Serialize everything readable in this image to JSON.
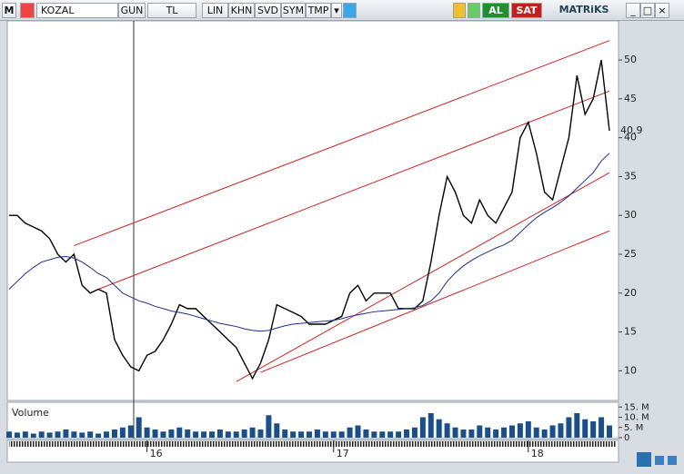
{
  "toolbar": {
    "menu": "M",
    "symbol": "KOZAL",
    "period": "GUN",
    "currency": "TL",
    "buttons": [
      "LIN",
      "KHN",
      "SVD",
      "SYM",
      "TMP"
    ],
    "buy": "AL",
    "sell": "SAT",
    "brand": "MATRiKS"
  },
  "chart_data": {
    "type": "line",
    "categories": [
      null,
      null,
      null,
      null,
      null,
      null,
      null,
      null,
      null,
      null,
      null,
      null,
      null,
      null,
      null,
      null,
      null,
      "16",
      null,
      null,
      null,
      null,
      null,
      null,
      null,
      null,
      null,
      null,
      null,
      null,
      null,
      null,
      null,
      null,
      null,
      null,
      null,
      null,
      null,
      null,
      "17",
      null,
      null,
      null,
      null,
      null,
      null,
      null,
      null,
      null,
      null,
      null,
      null,
      null,
      null,
      null,
      null,
      null,
      null,
      null,
      null,
      null,
      null,
      null,
      "18",
      null,
      null,
      null,
      null,
      null,
      null,
      null,
      null,
      null,
      null
    ],
    "series": [
      {
        "color": "#000000",
        "values": [
          30,
          30,
          29,
          28.5,
          28,
          27,
          25,
          24,
          25,
          21,
          20,
          20.5,
          20,
          14,
          12,
          10.5,
          10,
          12,
          12.5,
          14,
          16,
          18.5,
          18,
          18,
          17,
          16,
          15,
          14,
          13,
          11,
          9,
          11,
          14,
          18.5,
          18,
          17.5,
          17,
          16,
          16,
          16,
          16.5,
          17,
          20,
          21,
          19,
          20,
          20,
          20,
          18,
          18,
          18,
          19,
          24,
          30,
          35,
          33,
          30,
          29,
          32,
          30,
          29,
          31,
          33,
          40,
          42,
          38,
          33,
          32,
          36,
          40,
          48,
          43,
          45,
          50,
          40.9
        ]
      },
      {
        "color": "#1f2f8f",
        "values": [
          20.5,
          21.5,
          22.5,
          23.3,
          24,
          24.3,
          24.6,
          24.7,
          24.5,
          24,
          23.3,
          22.5,
          22,
          21,
          20,
          19.5,
          19,
          18.7,
          18.3,
          18,
          17.7,
          17.5,
          17.3,
          17,
          16.7,
          16.4,
          16.1,
          15.9,
          15.7,
          15.4,
          15.2,
          15.1,
          15.2,
          15.5,
          15.8,
          16,
          16.1,
          16.2,
          16.3,
          16.4,
          16.5,
          16.7,
          17,
          17.2,
          17.4,
          17.6,
          17.7,
          17.8,
          17.9,
          18,
          18.1,
          18.4,
          19,
          20,
          21.5,
          22.6,
          23.5,
          24.2,
          24.8,
          25.3,
          25.8,
          26.2,
          26.8,
          27.8,
          28.8,
          29.7,
          30.4,
          31,
          31.7,
          32.5,
          33.5,
          34.5,
          35.5,
          37,
          38
        ]
      }
    ],
    "ylim": [
      6.3,
      54.8
    ],
    "yticks": [
      10,
      15,
      20,
      25,
      30,
      35,
      40,
      45,
      50
    ],
    "trend_color": "#cc2222",
    "trend_lines": [
      {
        "x": [
          8,
          74
        ],
        "values": [
          26.1,
          52.5
        ]
      },
      {
        "x": [
          11,
          74
        ],
        "values": [
          20.5,
          46
        ]
      },
      {
        "x": [
          28,
          74
        ],
        "values": [
          8.6,
          35.5
        ]
      },
      {
        "x": [
          31,
          74
        ],
        "values": [
          9.8,
          28
        ]
      }
    ],
    "volume": {
      "label": "Volume",
      "color": "#1a4f8a",
      "values": [
        3,
        2.5,
        3,
        2,
        3,
        2.5,
        3,
        4,
        3,
        2.5,
        3,
        2,
        3,
        4,
        5,
        6,
        10,
        5,
        4,
        3,
        4,
        5,
        4,
        3,
        3,
        3,
        4,
        3,
        3,
        4,
        5,
        4,
        11,
        7,
        4,
        3,
        3,
        3,
        4,
        3,
        3,
        3,
        5,
        6,
        4,
        3,
        3,
        3,
        3,
        4,
        5,
        10,
        12,
        9,
        7,
        5,
        4,
        4,
        6,
        5,
        4,
        5,
        6,
        7,
        8,
        5,
        4,
        6,
        7,
        10,
        12,
        9,
        8,
        10,
        6
      ],
      "ylim": [
        0,
        16
      ],
      "yticks": [
        0,
        {
          "value": 5,
          "label": "5. M"
        },
        {
          "value": 10,
          "label": "10. M"
        },
        {
          "value": 15,
          "label": "15. M"
        }
      ]
    }
  }
}
